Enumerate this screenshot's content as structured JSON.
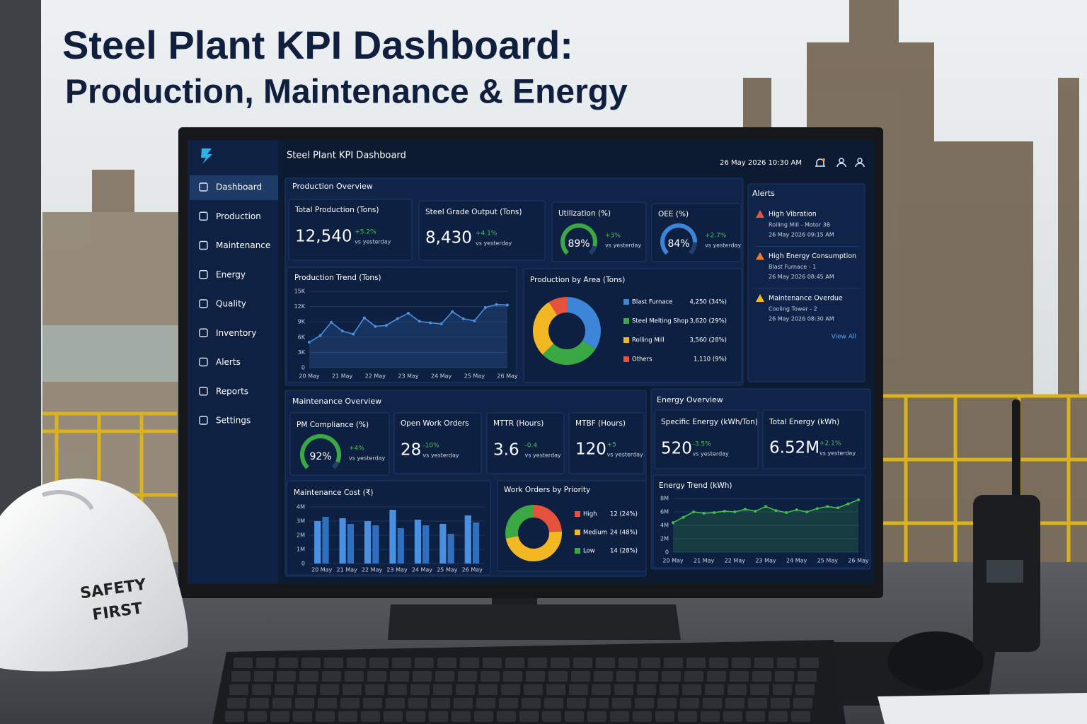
{
  "page_title": {
    "line1": "Steel Plant KPI Dashboard:",
    "line2": "Production, Maintenance & Energy"
  },
  "hard_hat": {
    "line1": "SAFETY",
    "line2": "FIRST"
  },
  "header": {
    "title": "Steel Plant KPI Dashboard",
    "datetime": "26 May 2026  10:30 AM"
  },
  "sidebar": [
    "Dashboard",
    "Production",
    "Maintenance",
    "Energy",
    "Quality",
    "Inventory",
    "Alerts",
    "Reports",
    "Settings"
  ],
  "production": {
    "title": "Production Overview",
    "kpis": [
      {
        "label": "Total Production (Tons)",
        "value": "12,540",
        "change": "+5.2%",
        "note": "vs yesterday"
      },
      {
        "label": "Steel Grade Output (Tons)",
        "value": "8,430",
        "change": "+4.1%",
        "note": "vs yesterday"
      }
    ],
    "gauges": [
      {
        "label": "Utilization (%)",
        "value": 89,
        "value_label": "89%",
        "color": "#3aa843",
        "change": "+3%",
        "note": "vs yesterday"
      },
      {
        "label": "OEE (%)",
        "value": 84,
        "value_label": "84%",
        "color": "#3d85d8",
        "change": "+2.7%",
        "note": "vs yesterday"
      }
    ],
    "trend": {
      "type": "line",
      "title": "Production Trend (Tons)",
      "color": "#4a90e2",
      "categories": [
        "20 May",
        null,
        null,
        "21 May",
        null,
        null,
        "22 May",
        null,
        null,
        "23 May",
        null,
        null,
        "24 May",
        null,
        null,
        "25 May",
        null,
        null,
        "26 May"
      ],
      "values": [
        5000,
        6300,
        8900,
        7200,
        6600,
        9800,
        8100,
        8300,
        9600,
        10700,
        9100,
        8800,
        8600,
        11000,
        9600,
        9200,
        11800,
        12400,
        12300
      ],
      "ylim": [
        0,
        15000
      ],
      "yticks": [
        0,
        {
          "value": 3000,
          "label": "3K"
        },
        {
          "value": 6000,
          "label": "6K"
        },
        {
          "value": 9000,
          "label": "9K"
        },
        {
          "value": 12000,
          "label": "12K"
        },
        {
          "value": 15000,
          "label": "15K"
        }
      ]
    },
    "by_area": {
      "type": "donut",
      "title": "Production by Area (Tons)",
      "items": [
        {
          "name": "Blast Furnace",
          "value": 4250,
          "label": "4,250 (34%)",
          "color": "#3d85d8"
        },
        {
          "name": "Steel Melting Shop",
          "value": 3620,
          "label": "3,620 (29%)",
          "color": "#3aa843"
        },
        {
          "name": "Rolling Mill",
          "value": 3560,
          "label": "3,560 (28%)",
          "color": "#f2b824"
        },
        {
          "name": "Others",
          "value": 1110,
          "label": "1,110 (9%)",
          "color": "#e5533d"
        }
      ]
    }
  },
  "alerts": {
    "title": "Alerts",
    "items": [
      {
        "title": "High Vibration",
        "source": "Rolling Mill - Motor 3B",
        "time": "26 May 2026 09:15 AM"
      },
      {
        "title": "High Energy Consumption",
        "source": "Blast Furnace - 1",
        "time": "26 May 2026 08:45 AM"
      },
      {
        "title": "Maintenance Overdue",
        "source": "Cooling Tower - 2",
        "time": "26 May 2026 08:30 AM"
      }
    ],
    "link": "View All"
  },
  "maintenance": {
    "title": "Maintenance Overview",
    "gauge": {
      "label": "PM Compliance (%)",
      "value": 92,
      "value_label": "92%",
      "color": "#3aa843",
      "change": "+4%",
      "note": "vs yesterday"
    },
    "kpis": [
      {
        "label": "Open Work Orders",
        "value": "28",
        "change": "-10%",
        "note": "vs yesterday"
      },
      {
        "label": "MTTR (Hours)",
        "value": "3.6",
        "change": "-0.4",
        "note": "vs yesterday"
      },
      {
        "label": "MTBF (Hours)",
        "value": "120",
        "change": "+5",
        "note": "vs yesterday"
      }
    ],
    "cost": {
      "type": "bar",
      "title": "Maintenance Cost (₹)",
      "categories": [
        "20 May",
        "21 May",
        "22 May",
        "23 May",
        "24 May",
        "25 May",
        "26 May"
      ],
      "series": [
        {
          "color": "#4a90e2",
          "values": [
            3000000,
            3200000,
            3000000,
            3800000,
            3100000,
            2800000,
            3400000
          ]
        },
        {
          "color": "#2f6fc0",
          "values": [
            3300000,
            2800000,
            2700000,
            2500000,
            2700000,
            2100000,
            2900000
          ]
        }
      ],
      "ylim": [
        0,
        4000000
      ],
      "yticks": [
        0,
        {
          "value": 1000000,
          "label": "1M"
        },
        {
          "value": 2000000,
          "label": "2M"
        },
        {
          "value": 3000000,
          "label": "3M"
        },
        {
          "value": 4000000,
          "label": "4M"
        }
      ]
    },
    "priority": {
      "type": "donut",
      "title": "Work Orders by Priority",
      "items": [
        {
          "name": "High",
          "value": 12,
          "label": "12 (24%)",
          "color": "#e5533d"
        },
        {
          "name": "Medium",
          "value": 24,
          "label": "24 (48%)",
          "color": "#f2b824"
        },
        {
          "name": "Low",
          "value": 14,
          "label": "14 (28%)",
          "color": "#3aa843"
        }
      ]
    }
  },
  "energy": {
    "title": "Energy Overview",
    "kpis": [
      {
        "label": "Specific Energy (kWh/Ton)",
        "value": "520",
        "change": "-3.5%",
        "note": "vs yesterday"
      },
      {
        "label": "Total Energy (kWh)",
        "value": "6.52M",
        "change": "+2.1%",
        "note": "vs yesterday"
      }
    ],
    "trend": {
      "type": "line",
      "title": "Energy Trend (kWh)",
      "color": "#3fbf4a",
      "categories": [
        "20 May",
        null,
        null,
        "21 May",
        null,
        null,
        "22 May",
        null,
        null,
        "23 May",
        null,
        null,
        "24 May",
        null,
        null,
        "25 May",
        null,
        null,
        "26 May"
      ],
      "values": [
        4400000,
        5200000,
        6000000,
        5800000,
        5900000,
        6100000,
        6000000,
        6400000,
        6100000,
        6800000,
        6200000,
        5900000,
        6300000,
        6000000,
        6500000,
        6800000,
        6600000,
        7200000,
        7800000
      ],
      "ylim": [
        0,
        8000000
      ],
      "yticks": [
        0,
        {
          "value": 2000000,
          "label": "2M"
        },
        {
          "value": 4000000,
          "label": "4M"
        },
        {
          "value": 6000000,
          "label": "6M"
        },
        {
          "value": 8000000,
          "label": "8M"
        }
      ]
    }
  }
}
